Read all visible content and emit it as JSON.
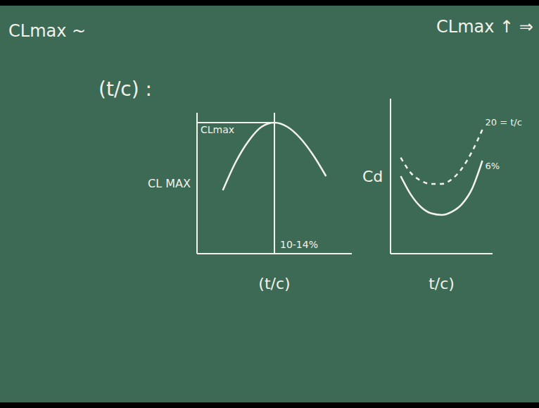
{
  "texts": {
    "top_left": "CLmax ~",
    "ratio": "(t/c) :",
    "top_right": "CLmax ↑ ⇒"
  },
  "chart_data": [
    {
      "type": "line",
      "x_label": "(t/c)",
      "y_label": "CL MAX",
      "x": [
        4,
        6,
        8,
        10,
        12,
        14,
        16,
        18,
        20
      ],
      "values": [
        0.45,
        0.65,
        0.8,
        0.9,
        0.93,
        0.9,
        0.82,
        0.7,
        0.55
      ],
      "xlim": [
        0,
        24
      ],
      "ylim": [
        0,
        1
      ],
      "tick_labels": false,
      "color": "#f2f2ea",
      "reference_y": {
        "value": 0.93,
        "label": "CLmax"
      },
      "reference_x": {
        "value": 12,
        "label": "10-14%"
      }
    },
    {
      "type": "line",
      "x_label": "t/c)",
      "y_label": "Cd",
      "x": [
        1,
        2,
        3,
        4,
        5,
        6,
        7,
        8,
        9
      ],
      "series": [
        {
          "name": "20 = t/c",
          "color": "#f2f2ea",
          "line_style": "dashed",
          "values": [
            0.62,
            0.52,
            0.47,
            0.45,
            0.45,
            0.48,
            0.55,
            0.66,
            0.8
          ]
        },
        {
          "name": "6%",
          "color": "#f2f2ea",
          "line_style": "solid",
          "values": [
            0.5,
            0.38,
            0.3,
            0.26,
            0.25,
            0.27,
            0.32,
            0.42,
            0.6
          ]
        }
      ],
      "xlim": [
        0,
        10
      ],
      "ylim": [
        0,
        1
      ],
      "tick_labels": false
    }
  ]
}
